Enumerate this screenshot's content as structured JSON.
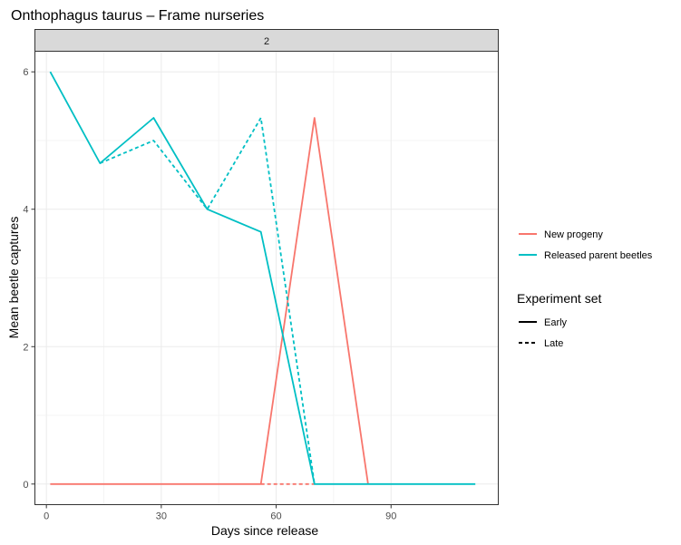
{
  "chart_data": {
    "type": "line",
    "title": "Onthophagus taurus – Frame nurseries",
    "facet_label": "2",
    "xlabel": "Days since release",
    "ylabel": "Mean beetle captures",
    "xlim": [
      -3,
      118
    ],
    "ylim": [
      -0.3,
      6.3
    ],
    "x_ticks": [
      0,
      30,
      60,
      90
    ],
    "y_ticks": [
      0,
      2,
      4,
      6
    ],
    "grid": true,
    "legend_position": "right",
    "color_legend": {
      "entries": [
        {
          "label": "New progeny",
          "color": "#F8766D"
        },
        {
          "label": "Released parent beetles",
          "color": "#00BFC4"
        }
      ]
    },
    "linetype_legend": {
      "title": "Experiment set",
      "entries": [
        {
          "label": "Early",
          "dash": "solid"
        },
        {
          "label": "Late",
          "dash": "dashed"
        }
      ]
    },
    "series": [
      {
        "group": "New progeny",
        "linetype": "Early",
        "color": "#F8766D",
        "dash": "solid",
        "x": [
          1,
          14,
          28,
          42,
          56,
          70,
          84
        ],
        "y": [
          0,
          0,
          0,
          0,
          0,
          5.33,
          0
        ]
      },
      {
        "group": "New progeny",
        "linetype": "Late",
        "color": "#F8766D",
        "dash": "dashed",
        "x": [
          56,
          70
        ],
        "y": [
          0,
          0
        ]
      },
      {
        "group": "Released parent beetles",
        "linetype": "Early",
        "color": "#00BFC4",
        "dash": "solid",
        "x": [
          1,
          14,
          28,
          42,
          56,
          70,
          84,
          98,
          112
        ],
        "y": [
          6,
          4.67,
          5.33,
          4,
          3.67,
          0,
          0,
          0,
          0
        ]
      },
      {
        "group": "Released parent beetles",
        "linetype": "Late",
        "color": "#00BFC4",
        "dash": "dashed",
        "x": [
          14,
          28,
          42,
          56,
          70
        ],
        "y": [
          4.67,
          5.0,
          4.0,
          5.33,
          0
        ]
      }
    ]
  }
}
